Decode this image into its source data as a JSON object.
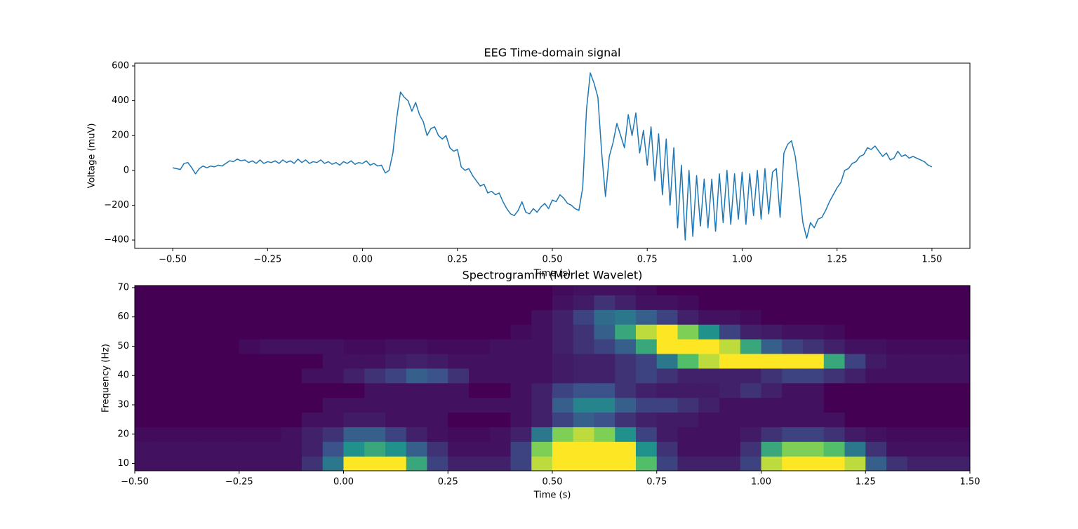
{
  "chart_data": [
    {
      "type": "line",
      "title": "EEG Time-domain signal",
      "x_label": "Time (s)",
      "y_label": "Voltage (muV)",
      "color": "#1f77b4",
      "xlim": [
        -0.6,
        1.6
      ],
      "ylim": [
        -448,
        616
      ],
      "xticks": [
        {
          "value": -0.5,
          "label": "−0.50"
        },
        {
          "value": -0.25,
          "label": "−0.25"
        },
        {
          "value": 0,
          "label": "0.00"
        },
        {
          "value": 0.25,
          "label": "0.25"
        },
        {
          "value": 0.5,
          "label": "0.50"
        },
        {
          "value": 0.75,
          "label": "0.75"
        },
        {
          "value": 1,
          "label": "1.00"
        },
        {
          "value": 1.25,
          "label": "1.25"
        },
        {
          "value": 1.5,
          "label": "1.50"
        }
      ],
      "yticks": [
        {
          "value": -400,
          "label": "−400"
        },
        {
          "value": -200,
          "label": "−200"
        },
        0,
        200,
        400,
        600
      ],
      "x": [
        -0.5,
        -0.49,
        -0.48,
        -0.47,
        -0.46,
        -0.45,
        -0.44,
        -0.43,
        -0.42,
        -0.41,
        -0.4,
        -0.39,
        -0.38,
        -0.37,
        -0.36,
        -0.35,
        -0.34,
        -0.33,
        -0.32,
        -0.31,
        -0.3,
        -0.29,
        -0.28,
        -0.27,
        -0.26,
        -0.25,
        -0.24,
        -0.23,
        -0.22,
        -0.21,
        -0.2,
        -0.19,
        -0.18,
        -0.17,
        -0.16,
        -0.15,
        -0.14,
        -0.13,
        -0.12,
        -0.11,
        -0.1,
        -0.09,
        -0.08,
        -0.07,
        -0.06,
        -0.05,
        -0.04,
        -0.03,
        -0.02,
        -0.01,
        0,
        0.01,
        0.02,
        0.03,
        0.04,
        0.05,
        0.06,
        0.07,
        0.08,
        0.09,
        0.1,
        0.11,
        0.12,
        0.13,
        0.14,
        0.15,
        0.16,
        0.17,
        0.18,
        0.19,
        0.2,
        0.21,
        0.22,
        0.23,
        0.24,
        0.25,
        0.26,
        0.27,
        0.28,
        0.29,
        0.3,
        0.31,
        0.32,
        0.33,
        0.34,
        0.35,
        0.36,
        0.37,
        0.38,
        0.39,
        0.4,
        0.41,
        0.42,
        0.43,
        0.44,
        0.45,
        0.46,
        0.47,
        0.48,
        0.49,
        0.5,
        0.51,
        0.52,
        0.53,
        0.54,
        0.55,
        0.56,
        0.57,
        0.58,
        0.59,
        0.6,
        0.61,
        0.62,
        0.63,
        0.64,
        0.65,
        0.66,
        0.67,
        0.68,
        0.69,
        0.7,
        0.71,
        0.72,
        0.73,
        0.74,
        0.75,
        0.76,
        0.77,
        0.78,
        0.79,
        0.8,
        0.81,
        0.82,
        0.83,
        0.84,
        0.85,
        0.86,
        0.87,
        0.88,
        0.89,
        0.9,
        0.91,
        0.92,
        0.93,
        0.94,
        0.95,
        0.96,
        0.97,
        0.98,
        0.99,
        1,
        1.01,
        1.02,
        1.03,
        1.04,
        1.05,
        1.06,
        1.07,
        1.08,
        1.09,
        1.1,
        1.11,
        1.12,
        1.13,
        1.14,
        1.15,
        1.16,
        1.17,
        1.18,
        1.19,
        1.2,
        1.21,
        1.22,
        1.23,
        1.24,
        1.25,
        1.26,
        1.27,
        1.28,
        1.29,
        1.3,
        1.31,
        1.32,
        1.33,
        1.34,
        1.35,
        1.36,
        1.37,
        1.38,
        1.39,
        1.4,
        1.41,
        1.42,
        1.43,
        1.44,
        1.45,
        1.46,
        1.47,
        1.48,
        1.49,
        1.5
      ],
      "values": [
        15,
        10,
        5,
        40,
        45,
        15,
        -20,
        10,
        25,
        15,
        25,
        20,
        30,
        25,
        40,
        55,
        50,
        65,
        55,
        60,
        45,
        55,
        40,
        60,
        40,
        50,
        45,
        55,
        40,
        60,
        45,
        55,
        40,
        65,
        45,
        60,
        40,
        50,
        45,
        60,
        40,
        50,
        35,
        45,
        30,
        50,
        40,
        55,
        35,
        45,
        40,
        55,
        30,
        40,
        25,
        30,
        -15,
        0,
        100,
        300,
        450,
        420,
        400,
        340,
        390,
        320,
        280,
        200,
        240,
        250,
        200,
        180,
        200,
        130,
        110,
        120,
        20,
        0,
        10,
        -30,
        -60,
        -90,
        -80,
        -130,
        -120,
        -140,
        -130,
        -180,
        -220,
        -250,
        -260,
        -230,
        -180,
        -240,
        -250,
        -220,
        -240,
        -210,
        -190,
        -220,
        -170,
        -180,
        -140,
        -160,
        -190,
        -200,
        -220,
        -230,
        -100,
        350,
        560,
        500,
        420,
        100,
        -150,
        80,
        160,
        270,
        200,
        130,
        320,
        200,
        330,
        100,
        230,
        30,
        250,
        -60,
        210,
        -140,
        180,
        -200,
        130,
        -330,
        30,
        -400,
        0,
        -380,
        -30,
        -320,
        -50,
        -330,
        -50,
        -350,
        -20,
        -300,
        0,
        -310,
        -20,
        -280,
        -10,
        -310,
        -20,
        -260,
        0,
        -280,
        10,
        -250,
        -10,
        10,
        -270,
        100,
        150,
        170,
        80,
        -100,
        -300,
        -390,
        -300,
        -330,
        -280,
        -270,
        -230,
        -180,
        -140,
        -100,
        -70,
        0,
        10,
        40,
        50,
        80,
        90,
        130,
        120,
        140,
        110,
        80,
        100,
        60,
        70,
        110,
        80,
        90,
        70,
        80,
        70,
        60,
        50,
        30,
        20
      ]
    },
    {
      "type": "heatmap",
      "title": "Spectrogramm (Morlet Wavelet)",
      "x_label": "Time (s)",
      "y_label": "Frequency (Hz)",
      "colormap": "viridis",
      "xlim": [
        -0.5,
        1.5
      ],
      "ylim": [
        7.5,
        70.7
      ],
      "xticks": [
        {
          "value": -0.5,
          "label": "−0.50"
        },
        {
          "value": -0.25,
          "label": "−0.25"
        },
        {
          "value": 0,
          "label": "0.00"
        },
        {
          "value": 0.25,
          "label": "0.25"
        },
        {
          "value": 0.5,
          "label": "0.50"
        },
        {
          "value": 0.75,
          "label": "0.75"
        },
        {
          "value": 1,
          "label": "1.00"
        },
        {
          "value": 1.25,
          "label": "1.25"
        },
        {
          "value": 1.5,
          "label": "1.50"
        }
      ],
      "yticks": [
        10,
        20,
        30,
        40,
        50,
        60,
        70
      ],
      "x": [
        -0.475,
        -0.425,
        -0.375,
        -0.325,
        -0.275,
        -0.225,
        -0.175,
        -0.125,
        -0.075,
        -0.025,
        0.025,
        0.075,
        0.125,
        0.175,
        0.225,
        0.275,
        0.325,
        0.375,
        0.425,
        0.475,
        0.525,
        0.575,
        0.625,
        0.675,
        0.725,
        0.775,
        0.825,
        0.875,
        0.925,
        0.975,
        1.025,
        1.075,
        1.125,
        1.175,
        1.225,
        1.275,
        1.325,
        1.375,
        1.425,
        1.475
      ],
      "y": [
        10,
        15,
        20,
        25,
        30,
        35,
        40,
        45,
        50,
        55,
        60,
        65,
        70
      ],
      "values": [
        [
          0.05,
          0.05,
          0.05,
          0.05,
          0.05,
          0.05,
          0.05,
          0.05,
          0.15,
          0.4,
          1,
          1,
          1,
          0.6,
          0.2,
          0.1,
          0.1,
          0.1,
          0.2,
          0.9,
          1,
          1,
          1,
          1,
          0.7,
          0.2,
          0.1,
          0.1,
          0.1,
          0.2,
          0.9,
          1,
          1,
          1,
          0.9,
          0.3,
          0.15,
          0.1,
          0.1,
          0.1
        ],
        [
          0.05,
          0.05,
          0.05,
          0.05,
          0.05,
          0.05,
          0.05,
          0.05,
          0.1,
          0.25,
          0.5,
          0.6,
          0.5,
          0.3,
          0.15,
          0.05,
          0.05,
          0.05,
          0.2,
          0.8,
          1,
          1,
          1,
          1,
          0.5,
          0.15,
          0.05,
          0.05,
          0.05,
          0.15,
          0.6,
          0.8,
          0.8,
          0.7,
          0.4,
          0.15,
          0.05,
          0.05,
          0.05,
          0.05
        ],
        [
          0.03,
          0.03,
          0.03,
          0.03,
          0.03,
          0.03,
          0.03,
          0.05,
          0.1,
          0.15,
          0.3,
          0.3,
          0.2,
          0.1,
          0.05,
          0.03,
          0.03,
          0.05,
          0.1,
          0.4,
          0.8,
          0.9,
          0.8,
          0.5,
          0.2,
          0.08,
          0.05,
          0.05,
          0.05,
          0.08,
          0.15,
          0.2,
          0.2,
          0.15,
          0.08,
          0.05,
          0.03,
          0.03,
          0.03,
          0.03
        ],
        [
          0,
          0,
          0,
          0,
          0,
          0,
          0,
          0,
          0.05,
          0.05,
          0.08,
          0.08,
          0.05,
          0.05,
          0.05,
          0,
          0,
          0,
          0.05,
          0.1,
          0.2,
          0.3,
          0.25,
          0.15,
          0.1,
          0.08,
          0.08,
          0.05,
          0.05,
          0.05,
          0.05,
          0.05,
          0.05,
          0.05,
          0,
          0,
          0,
          0,
          0,
          0
        ],
        [
          0,
          0,
          0,
          0,
          0,
          0,
          0,
          0,
          0,
          0.05,
          0.05,
          0.05,
          0.05,
          0.05,
          0.05,
          0.05,
          0.05,
          0.05,
          0.05,
          0.1,
          0.3,
          0.45,
          0.45,
          0.3,
          0.2,
          0.2,
          0.15,
          0.1,
          0.05,
          0.05,
          0.05,
          0.05,
          0.05,
          0,
          0,
          0,
          0,
          0,
          0,
          0
        ],
        [
          0,
          0,
          0,
          0,
          0,
          0,
          0,
          0,
          0,
          0,
          0,
          0.05,
          0.05,
          0.05,
          0.05,
          0.05,
          0,
          0,
          0.05,
          0.1,
          0.2,
          0.25,
          0.25,
          0.15,
          0.1,
          0.08,
          0.08,
          0.08,
          0.1,
          0.15,
          0.1,
          0.05,
          0.05,
          0,
          0,
          0,
          0,
          0,
          0,
          0
        ],
        [
          0,
          0,
          0,
          0,
          0,
          0,
          0,
          0,
          0.05,
          0.05,
          0.1,
          0.15,
          0.2,
          0.3,
          0.25,
          0.15,
          0.05,
          0.05,
          0.05,
          0.05,
          0.08,
          0.1,
          0.1,
          0.15,
          0.2,
          0.15,
          0.1,
          0.1,
          0.1,
          0.1,
          0.15,
          0.2,
          0.2,
          0.15,
          0.1,
          0.05,
          0.05,
          0.05,
          0.05,
          0.05
        ],
        [
          0,
          0,
          0,
          0,
          0,
          0,
          0,
          0,
          0,
          0.05,
          0.05,
          0.05,
          0.08,
          0.1,
          0.08,
          0.05,
          0.05,
          0.05,
          0.05,
          0.05,
          0.08,
          0.1,
          0.1,
          0.15,
          0.2,
          0.4,
          0.7,
          0.9,
          1,
          1,
          1,
          1,
          1,
          0.6,
          0.2,
          0.08,
          0.05,
          0.05,
          0.05,
          0.05
        ],
        [
          0,
          0,
          0,
          0,
          0,
          0.03,
          0.05,
          0.05,
          0.05,
          0.05,
          0.03,
          0.03,
          0.05,
          0.05,
          0.03,
          0.03,
          0.03,
          0.05,
          0.05,
          0.05,
          0.1,
          0.15,
          0.2,
          0.3,
          0.6,
          1,
          1,
          1,
          0.9,
          0.6,
          0.3,
          0.2,
          0.15,
          0.1,
          0.05,
          0.05,
          0.03,
          0.03,
          0.03,
          0.03
        ],
        [
          0,
          0,
          0,
          0,
          0,
          0,
          0,
          0,
          0,
          0,
          0,
          0,
          0,
          0,
          0,
          0,
          0,
          0,
          0.03,
          0.05,
          0.1,
          0.15,
          0.3,
          0.6,
          0.9,
          1,
          0.8,
          0.5,
          0.2,
          0.1,
          0.08,
          0.05,
          0.05,
          0.03,
          0,
          0,
          0,
          0,
          0,
          0
        ],
        [
          0,
          0,
          0,
          0,
          0,
          0,
          0,
          0,
          0,
          0,
          0,
          0,
          0,
          0,
          0,
          0,
          0,
          0,
          0,
          0.05,
          0.1,
          0.2,
          0.35,
          0.4,
          0.3,
          0.2,
          0.1,
          0.05,
          0.05,
          0.03,
          0,
          0,
          0,
          0,
          0,
          0,
          0,
          0,
          0,
          0
        ],
        [
          0,
          0,
          0,
          0,
          0,
          0,
          0,
          0,
          0,
          0,
          0,
          0,
          0,
          0,
          0,
          0,
          0,
          0,
          0,
          0,
          0.05,
          0.08,
          0.15,
          0.1,
          0.05,
          0.05,
          0.03,
          0,
          0,
          0,
          0,
          0,
          0,
          0,
          0,
          0,
          0,
          0,
          0,
          0
        ],
        [
          0,
          0,
          0,
          0,
          0,
          0,
          0,
          0,
          0,
          0,
          0,
          0,
          0,
          0,
          0,
          0,
          0,
          0,
          0,
          0,
          0.03,
          0.05,
          0.05,
          0.05,
          0.03,
          0,
          0,
          0,
          0,
          0,
          0,
          0,
          0,
          0,
          0,
          0,
          0,
          0,
          0,
          0
        ]
      ]
    }
  ]
}
